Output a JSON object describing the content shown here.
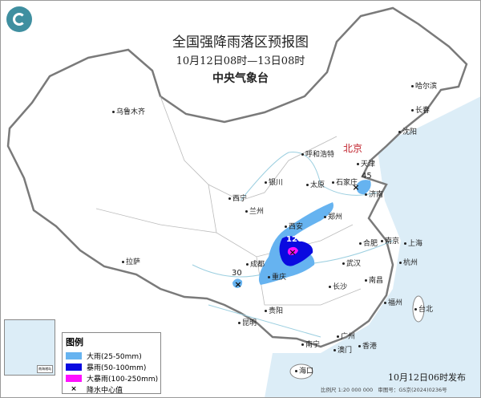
{
  "header": {
    "title": "全国强降雨落区预报图",
    "period": "10月12日08时—13日08时",
    "agency": "中央气象台"
  },
  "colors": {
    "heavy_rain": "#66b3f0",
    "rainstorm": "#0a0ae0",
    "heavy_rainstorm": "#ff10ff",
    "sea": "#dcedf7",
    "capital": "#c0202a"
  },
  "legend": {
    "title": "图例",
    "items": [
      {
        "label": "大雨(25-50mm)",
        "color": "#66b3f0"
      },
      {
        "label": "暴雨(50-100mm)",
        "color": "#0a0ae0"
      },
      {
        "label": "大暴雨(100-250mm)",
        "color": "#ff10ff"
      }
    ],
    "center_label": "降水中心值",
    "center_icon": "x-mark-icon"
  },
  "capital": "北京",
  "cities": [
    "乌鲁木齐",
    "哈尔滨",
    "长春",
    "沈阳",
    "天津",
    "呼和浩特",
    "银川",
    "太原",
    "石家庄",
    "济南",
    "西宁",
    "兰州",
    "西安",
    "郑州",
    "合肥",
    "南京",
    "上海",
    "杭州",
    "成都",
    "重庆",
    "武汉",
    "南昌",
    "长沙",
    "拉萨",
    "贵阳",
    "昆明",
    "福州",
    "台北",
    "南宁",
    "广州",
    "澳门",
    "香港",
    "海口"
  ],
  "precip_centers": [
    "120",
    "45",
    "30"
  ],
  "inset": {
    "caption": "南海诸岛"
  },
  "footer": {
    "issued": "10月12日06时发布",
    "scale": "比例尺 1:20 000 000",
    "approval": "审图号：GS京(2024)0236号"
  }
}
